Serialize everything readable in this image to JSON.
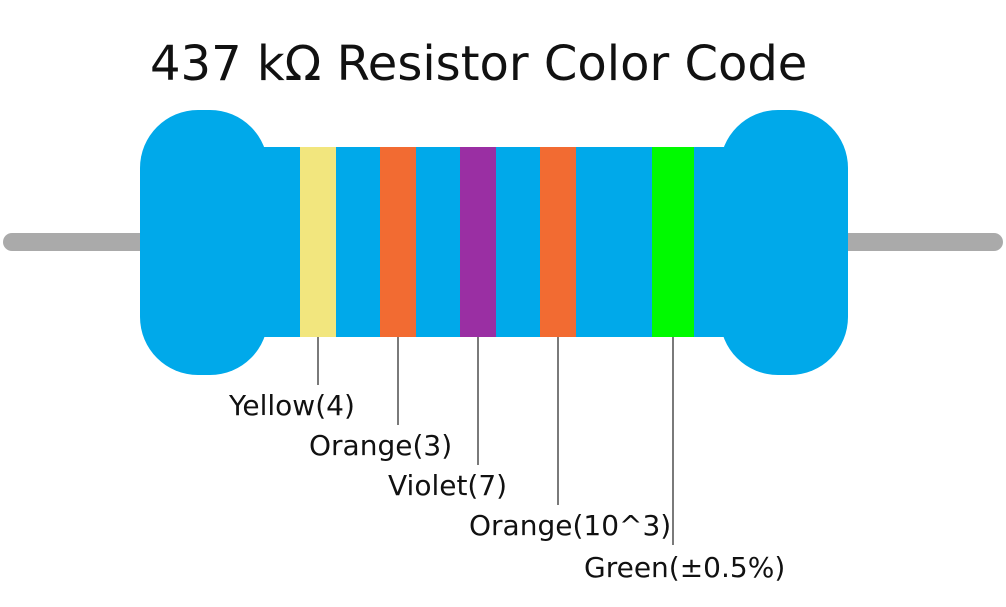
{
  "title": "437 kΩ Resistor Color Code",
  "bands": [
    {
      "label": "Yellow(4)",
      "color": "#f2e67e"
    },
    {
      "label": "Orange(3)",
      "color": "#f26b32"
    },
    {
      "label": "Violet(7)",
      "color": "#9a2fa3"
    },
    {
      "label": "Orange(10^3)",
      "color": "#f26b32"
    },
    {
      "label": "Green(±0.5%)",
      "color": "#00fa00"
    }
  ]
}
